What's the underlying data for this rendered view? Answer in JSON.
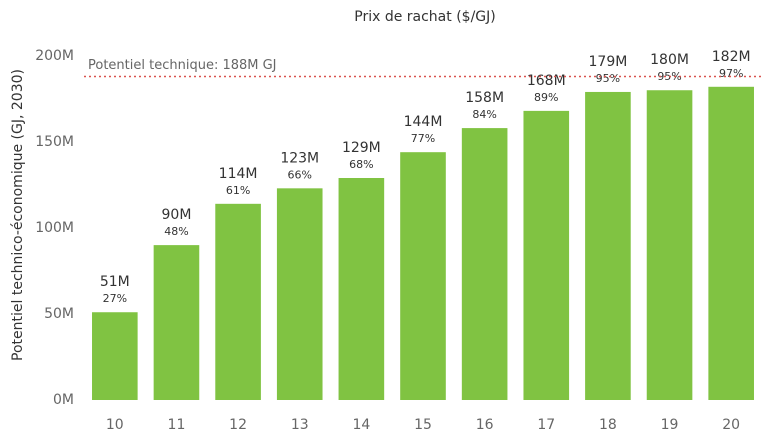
{
  "chart_data": {
    "type": "bar",
    "title": "Prix de rachat ($/GJ)",
    "y_label": "Potentiel technico-économique (GJ, 2030)",
    "categories": [
      "10",
      "11",
      "12",
      "13",
      "14",
      "15",
      "16",
      "17",
      "18",
      "19",
      "20"
    ],
    "values": [
      51000000,
      90000000,
      114000000,
      123000000,
      129000000,
      144000000,
      158000000,
      168000000,
      179000000,
      180000000,
      182000000
    ],
    "value_labels": [
      "51M",
      "90M",
      "114M",
      "123M",
      "129M",
      "144M",
      "158M",
      "168M",
      "179M",
      "180M",
      "182M"
    ],
    "percent_labels": [
      "27%",
      "48%",
      "61%",
      "66%",
      "68%",
      "77%",
      "84%",
      "89%",
      "95%",
      "95%",
      "97%"
    ],
    "color": "#80c342",
    "reference_line": {
      "value": 188000000,
      "label": "Potentiel technique: 188M GJ",
      "color": "#d9534f"
    },
    "ylim": [
      0,
      215000000
    ],
    "yticks": [
      {
        "value": 0,
        "label": "0M"
      },
      {
        "value": 50000000,
        "label": "50M"
      },
      {
        "value": 100000000,
        "label": "100M"
      },
      {
        "value": 150000000,
        "label": "150M"
      },
      {
        "value": 200000000,
        "label": "200M"
      }
    ],
    "grid": false
  }
}
